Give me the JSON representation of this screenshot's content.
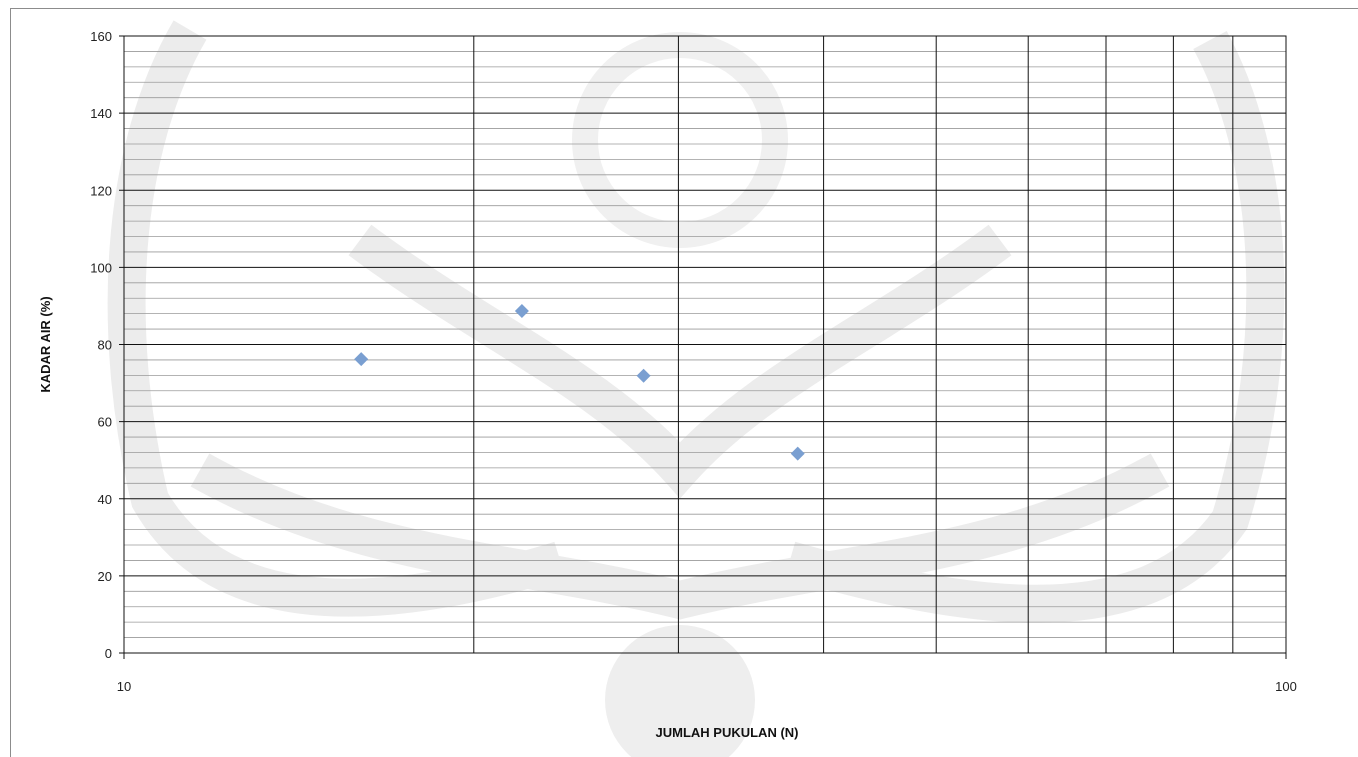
{
  "chart_data": {
    "type": "scatter",
    "title": "",
    "xlabel": "JUMLAH PUKULAN (N)",
    "ylabel": "KADAR AIR (%)",
    "x_scale": "log",
    "xlim": [
      10,
      100
    ],
    "ylim": [
      0,
      160
    ],
    "x_tick_labels": [
      "10",
      "100"
    ],
    "y_tick_labels": [
      "0",
      "20",
      "40",
      "60",
      "80",
      "100",
      "120",
      "140",
      "160"
    ],
    "grid": true,
    "legend": "none",
    "series": [
      {
        "marker": "diamond",
        "color": "#7a9fd1",
        "points": [
          {
            "x": 16,
            "y": 76.2
          },
          {
            "x": 22,
            "y": 88.7
          },
          {
            "x": 28,
            "y": 71.9
          },
          {
            "x": 38,
            "y": 51.7
          }
        ]
      }
    ]
  },
  "colors": {
    "major_grid": "#111111",
    "minor_grid": "#9a9a9a",
    "marker": "#7a9fd1",
    "watermark": "#e6e6e6"
  }
}
